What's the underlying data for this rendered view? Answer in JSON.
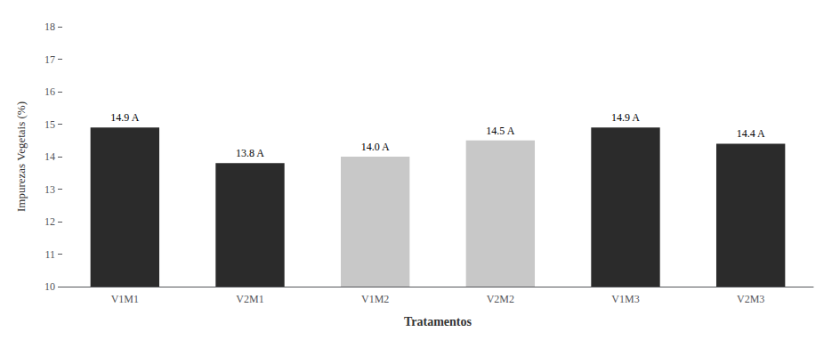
{
  "chart_data": {
    "type": "bar",
    "categories": [
      "V1M1",
      "V2M1",
      "V1M2",
      "V2M2",
      "V1M3",
      "V2M3"
    ],
    "values": [
      14.9,
      13.8,
      14.0,
      14.5,
      14.9,
      14.4
    ],
    "value_labels": [
      "14.9 A",
      "13.8 A",
      "14.0 A",
      "14.5 A",
      "14.9 A",
      "14.4 A"
    ],
    "colors": [
      "#2b2b2b",
      "#2b2b2b",
      "#c8c8c8",
      "#c8c8c8",
      "#2b2b2b",
      "#2b2b2b"
    ],
    "xlabel": "Tratamentos",
    "ylabel": "Impurezas Vegetais (%)",
    "ylim": [
      10,
      18
    ],
    "yticks": [
      10,
      11,
      12,
      13,
      14,
      15,
      16,
      17,
      18
    ],
    "grid": false,
    "data_labels": true
  }
}
